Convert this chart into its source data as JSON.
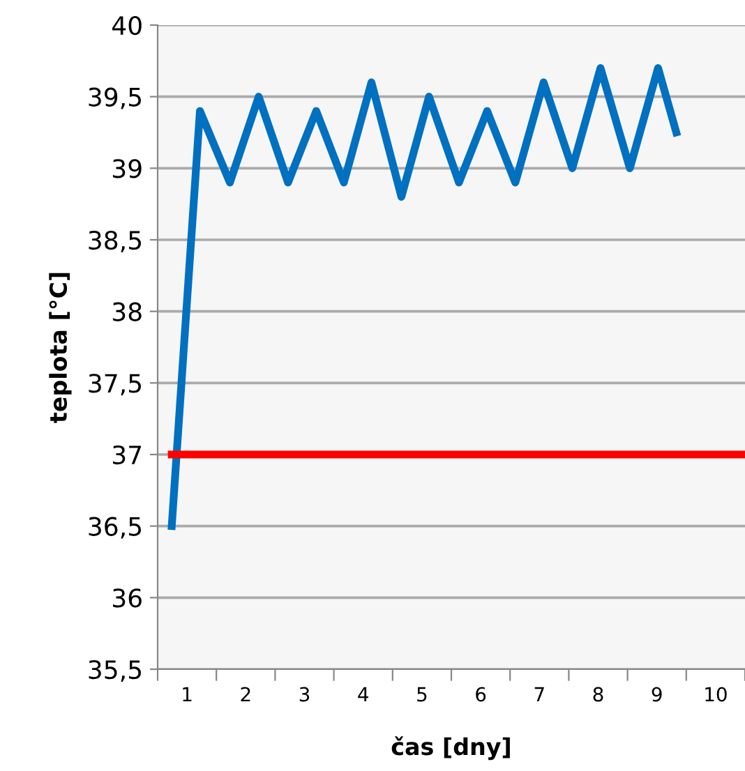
{
  "chart_data": {
    "type": "line",
    "xlabel": "čas [dny]",
    "ylabel": "teplota [°C]",
    "xlim": [
      0.5,
      10.5
    ],
    "xticks": [
      {
        "value": 0.5,
        "label": null
      },
      {
        "value": 1,
        "label": "1"
      },
      {
        "value": 1.5,
        "label": null
      },
      {
        "value": 2,
        "label": "2"
      },
      {
        "value": 2.5,
        "label": null
      },
      {
        "value": 3,
        "label": "3"
      },
      {
        "value": 3.5,
        "label": null
      },
      {
        "value": 4,
        "label": "4"
      },
      {
        "value": 4.5,
        "label": null
      },
      {
        "value": 5,
        "label": "5"
      },
      {
        "value": 5.5,
        "label": null
      },
      {
        "value": 6,
        "label": "6"
      },
      {
        "value": 6.5,
        "label": null
      },
      {
        "value": 7,
        "label": "7"
      },
      {
        "value": 7.5,
        "label": null
      },
      {
        "value": 8,
        "label": "8"
      },
      {
        "value": 8.5,
        "label": null
      },
      {
        "value": 9,
        "label": "9"
      },
      {
        "value": 9.5,
        "label": null
      },
      {
        "value": 10,
        "label": "10"
      },
      {
        "value": 10.5,
        "label": null
      }
    ],
    "ylim": [
      35.5,
      40
    ],
    "yticks": [
      {
        "value": 35.5,
        "label": "35,5"
      },
      36,
      {
        "value": 36.5,
        "label": "36,5"
      },
      37,
      {
        "value": 37.5,
        "label": "37,5"
      },
      38,
      {
        "value": 38.5,
        "label": "38,5"
      },
      39,
      {
        "value": 39.5,
        "label": "39,5"
      },
      40
    ],
    "grid": "y",
    "marker": "none",
    "line_style": "solid",
    "series": [
      {
        "color": "#0070c0",
        "x": [
          0.74,
          1.22,
          1.73,
          2.22,
          2.72,
          3.2,
          3.67,
          4.14,
          4.65,
          5.12,
          5.63,
          6.11,
          6.59,
          7.07,
          7.56,
          8.04,
          8.54,
          9.02,
          9.33
        ],
        "values": [
          36.5,
          39.4,
          38.9,
          39.5,
          38.9,
          39.4,
          38.9,
          39.6,
          38.8,
          39.5,
          38.9,
          39.4,
          38.9,
          39.6,
          39.0,
          39.7,
          39.0,
          39.7,
          39.25
        ]
      },
      {
        "color": "#ff0000",
        "x": [
          0.74,
          10.5
        ],
        "values": [
          37,
          37
        ]
      }
    ]
  }
}
